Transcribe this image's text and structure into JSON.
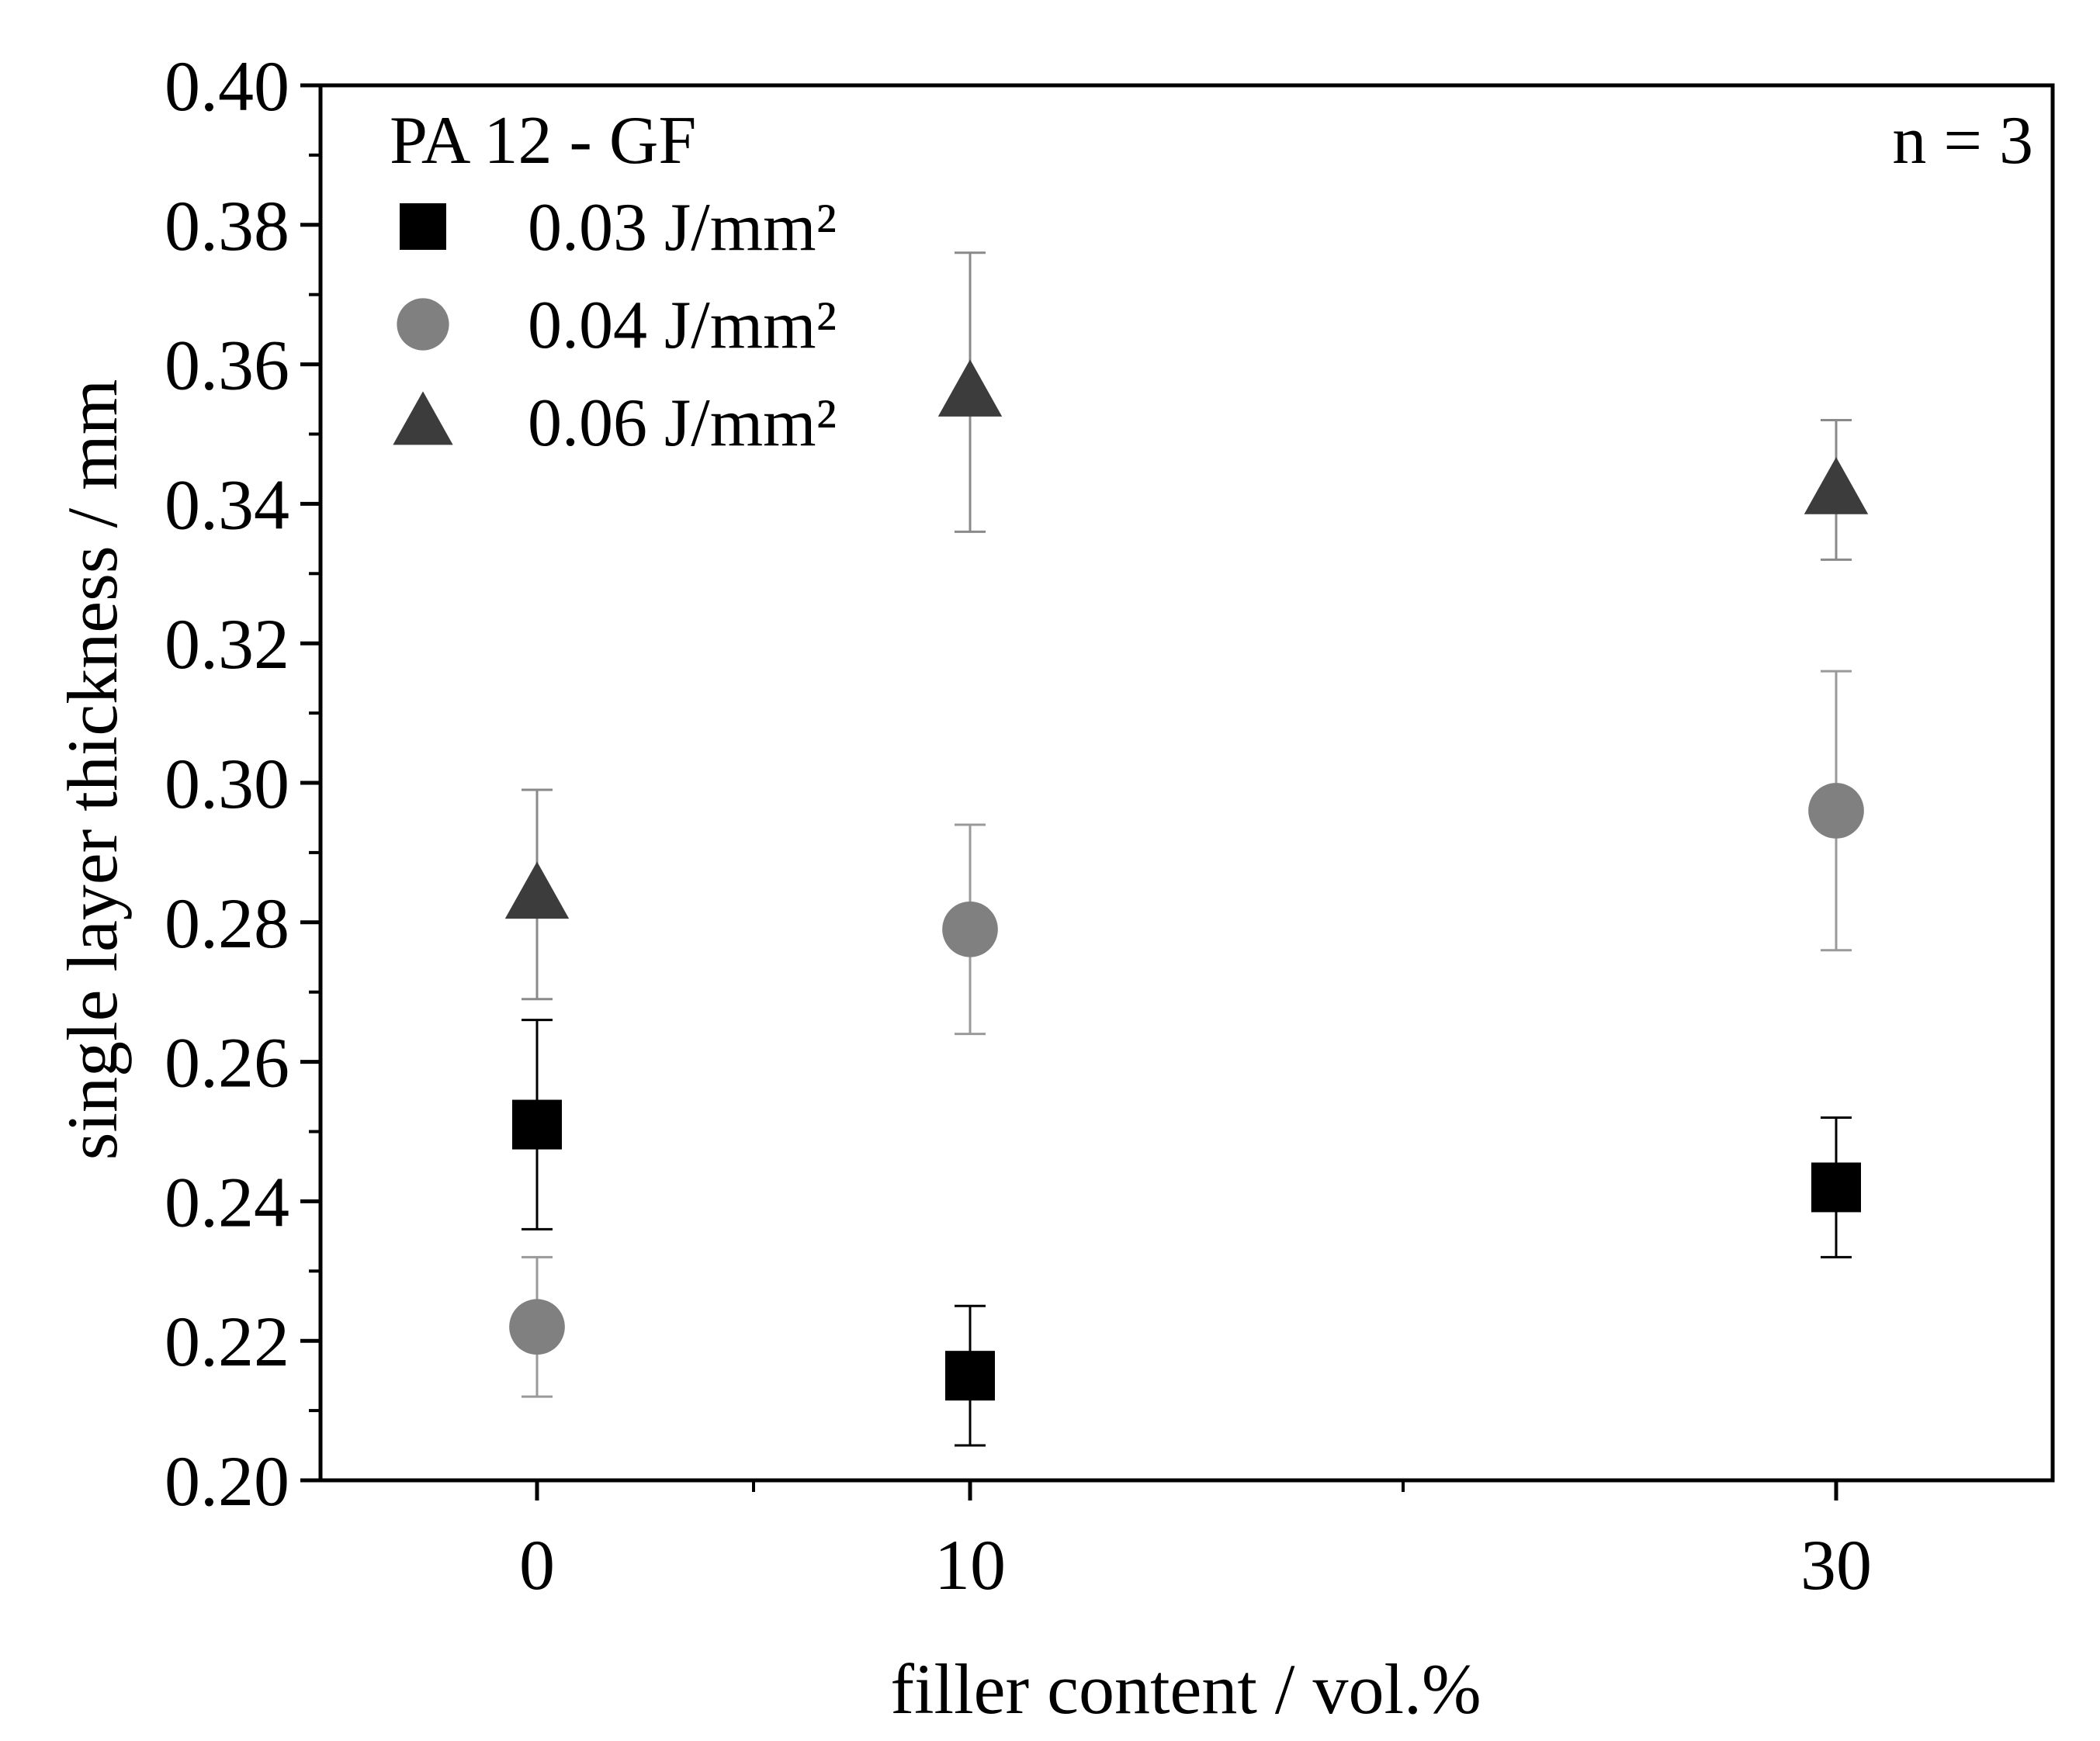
{
  "chart_data": {
    "type": "scatter",
    "title": "",
    "xlabel": "filler content / vol.%",
    "ylabel": "single layer thickness / mm",
    "xlim": [
      -5,
      35
    ],
    "ylim": [
      0.2,
      0.4
    ],
    "x_ticks": [
      0,
      10,
      30
    ],
    "x_minor_ticks": [
      5,
      20
    ],
    "x_tick_labels": [
      "0",
      "10",
      "30"
    ],
    "y_ticks": [
      0.2,
      0.22,
      0.24,
      0.26,
      0.28,
      0.3,
      0.32,
      0.34,
      0.36,
      0.38,
      0.4
    ],
    "y_tick_labels": [
      "0.20",
      "0.22",
      "0.24",
      "0.26",
      "0.28",
      "0.30",
      "0.32",
      "0.34",
      "0.36",
      "0.38",
      "0.40"
    ],
    "grid": false,
    "legend_title": "PA 12 - GF",
    "legend_position": "top-left",
    "annotation": "n = 3",
    "series": [
      {
        "name": "0.03 J/mm²",
        "marker": "square",
        "color": "#000000",
        "error_color": "#000000",
        "x": [
          0,
          10,
          30
        ],
        "y": [
          0.251,
          0.215,
          0.242
        ],
        "y_err": [
          0.015,
          0.01,
          0.01
        ]
      },
      {
        "name": "0.04 J/mm²",
        "marker": "circle",
        "color": "#808080",
        "error_color": "#9a9a9a",
        "x": [
          0,
          10,
          30
        ],
        "y": [
          0.222,
          0.279,
          0.296
        ],
        "y_err": [
          0.01,
          0.015,
          0.02
        ]
      },
      {
        "name": "0.06 J/mm²",
        "marker": "triangle",
        "color": "#3c3c3c",
        "error_color": "#8a8a8a",
        "x": [
          0,
          10,
          30
        ],
        "y": [
          0.284,
          0.356,
          0.342
        ],
        "y_err": [
          0.015,
          0.02,
          0.01
        ]
      }
    ]
  }
}
